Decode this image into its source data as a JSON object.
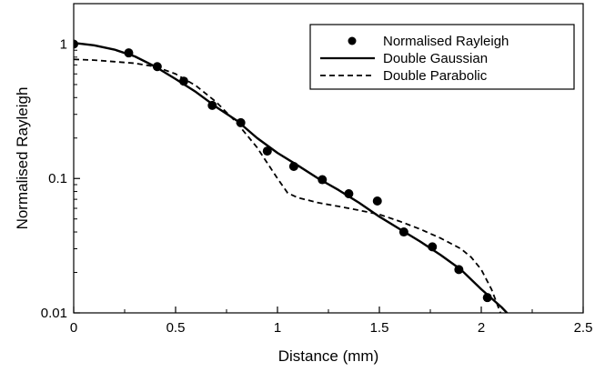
{
  "chart_data": {
    "type": "scatter",
    "title": "",
    "xlabel": "Distance (mm)",
    "ylabel": "Normalised Rayleigh",
    "xlim": [
      0,
      2.5
    ],
    "ylim": [
      0.01,
      2
    ],
    "yscale": "log",
    "grid": false,
    "legend_position": "top-right",
    "x_ticks": [
      0,
      0.5,
      1,
      1.5,
      2,
      2.5
    ],
    "x_tick_labels": [
      "0",
      "0.5",
      "1",
      "1.5",
      "2",
      "2.5"
    ],
    "y_ticks": [
      0.01,
      0.1,
      1
    ],
    "y_tick_labels": [
      "0.01",
      "0.1",
      "1"
    ],
    "series": [
      {
        "name": "Normalised Rayleigh",
        "style": "markers",
        "color": "#000000",
        "x": [
          0.0,
          0.27,
          0.41,
          0.54,
          0.68,
          0.82,
          0.95,
          1.08,
          1.22,
          1.35,
          1.49,
          1.62,
          1.76,
          1.89,
          2.03
        ],
        "y": [
          1.0,
          0.86,
          0.68,
          0.53,
          0.35,
          0.26,
          0.16,
          0.123,
          0.098,
          0.077,
          0.068,
          0.04,
          0.031,
          0.021,
          0.013
        ]
      },
      {
        "name": "Double Gaussian",
        "style": "solid",
        "color": "#000000",
        "x": [
          0.0,
          0.1,
          0.2,
          0.3,
          0.4,
          0.5,
          0.6,
          0.7,
          0.8,
          0.9,
          1.0,
          1.1,
          1.2,
          1.3,
          1.4,
          1.5,
          1.6,
          1.7,
          1.8,
          1.9,
          2.0,
          2.1,
          2.14
        ],
        "y": [
          1.02,
          0.98,
          0.91,
          0.81,
          0.68,
          0.55,
          0.44,
          0.34,
          0.27,
          0.2,
          0.155,
          0.125,
          0.1,
          0.082,
          0.066,
          0.052,
          0.042,
          0.034,
          0.027,
          0.021,
          0.015,
          0.011,
          0.0095
        ]
      },
      {
        "name": "Double Parabolic",
        "style": "dashed",
        "color": "#000000",
        "x": [
          0.0,
          0.1,
          0.2,
          0.3,
          0.4,
          0.5,
          0.6,
          0.7,
          0.8,
          0.9,
          1.0,
          1.05,
          1.1,
          1.2,
          1.3,
          1.4,
          1.5,
          1.6,
          1.7,
          1.8,
          1.9,
          1.95,
          2.0,
          2.05,
          2.1
        ],
        "y": [
          0.77,
          0.76,
          0.74,
          0.72,
          0.68,
          0.6,
          0.49,
          0.37,
          0.26,
          0.17,
          0.1,
          0.078,
          0.072,
          0.066,
          0.062,
          0.058,
          0.054,
          0.048,
          0.042,
          0.036,
          0.03,
          0.026,
          0.021,
          0.015,
          0.0095
        ]
      }
    ]
  }
}
